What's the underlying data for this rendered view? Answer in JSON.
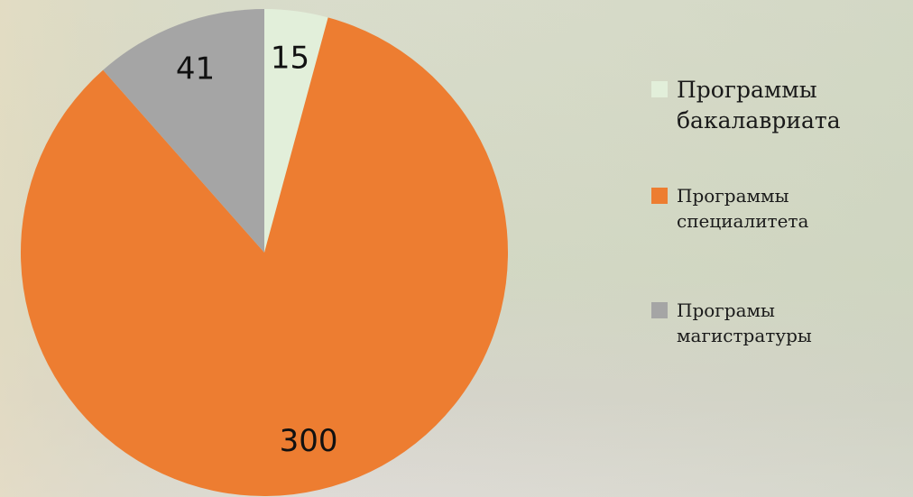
{
  "chart_data": {
    "type": "pie",
    "categories": [
      "Программы бакалавриата",
      "Программы специалитета",
      "Програмы магистратуры"
    ],
    "values": [
      15,
      300,
      41
    ],
    "colors": [
      "#e2efda",
      "#ed7d31",
      "#a5a5a5"
    ],
    "legend": "right"
  }
}
